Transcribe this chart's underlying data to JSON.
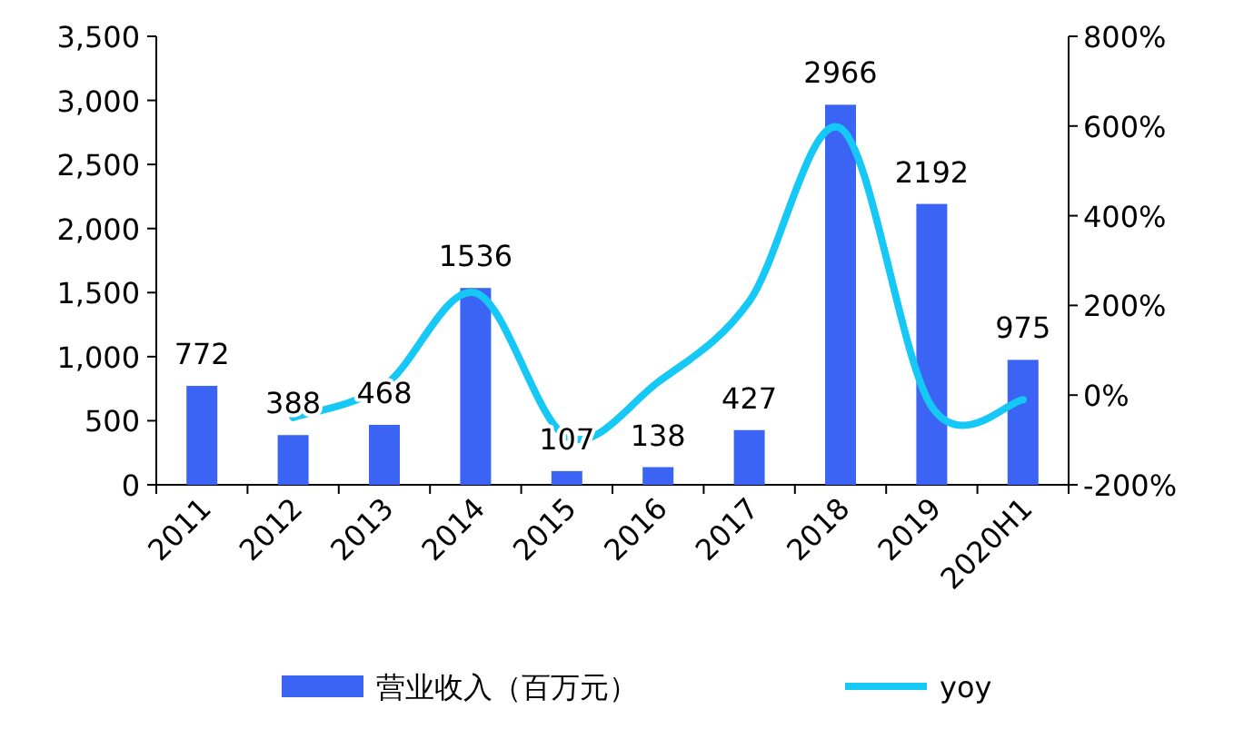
{
  "chart_data": {
    "type": "bar",
    "categories": [
      "2011",
      "2012",
      "2013",
      "2014",
      "2015",
      "2016",
      "2017",
      "2018",
      "2019",
      "2020H1"
    ],
    "series": [
      {
        "name": "营业收入（百万元）",
        "color": "#3b64f5",
        "values": [
          772,
          388,
          468,
          1536,
          107,
          138,
          427,
          2966,
          2192,
          975
        ],
        "value_labels": [
          "772",
          "388",
          "468",
          "1536",
          "107",
          "138",
          "427",
          "2966",
          "2192",
          "975"
        ]
      },
      {
        "name": "yoy",
        "type": "line",
        "axis": "y2",
        "color": "#16c8f5",
        "values": [
          null,
          -50,
          21,
          228,
          -93,
          29,
          209,
          595,
          -26,
          -10
        ]
      }
    ],
    "ylim": [
      0,
      3500
    ],
    "yticks": [
      {
        "value": 0,
        "label": "0"
      },
      {
        "value": 500,
        "label": "500"
      },
      {
        "value": 1000,
        "label": "1,000"
      },
      {
        "value": 1500,
        "label": "1,500"
      },
      {
        "value": 2000,
        "label": "2,000"
      },
      {
        "value": 2500,
        "label": "2,500"
      },
      {
        "value": 3000,
        "label": "3,000"
      },
      {
        "value": 3500,
        "label": "3,500"
      }
    ],
    "y2lim": [
      -200,
      800
    ],
    "y2ticks": [
      {
        "value": -200,
        "label": "-200%"
      },
      {
        "value": 0,
        "label": "0%"
      },
      {
        "value": 200,
        "label": "200%"
      },
      {
        "value": 400,
        "label": "400%"
      },
      {
        "value": 600,
        "label": "600%"
      },
      {
        "value": 800,
        "label": "800%"
      }
    ],
    "legend": "bottom",
    "grid": false
  }
}
